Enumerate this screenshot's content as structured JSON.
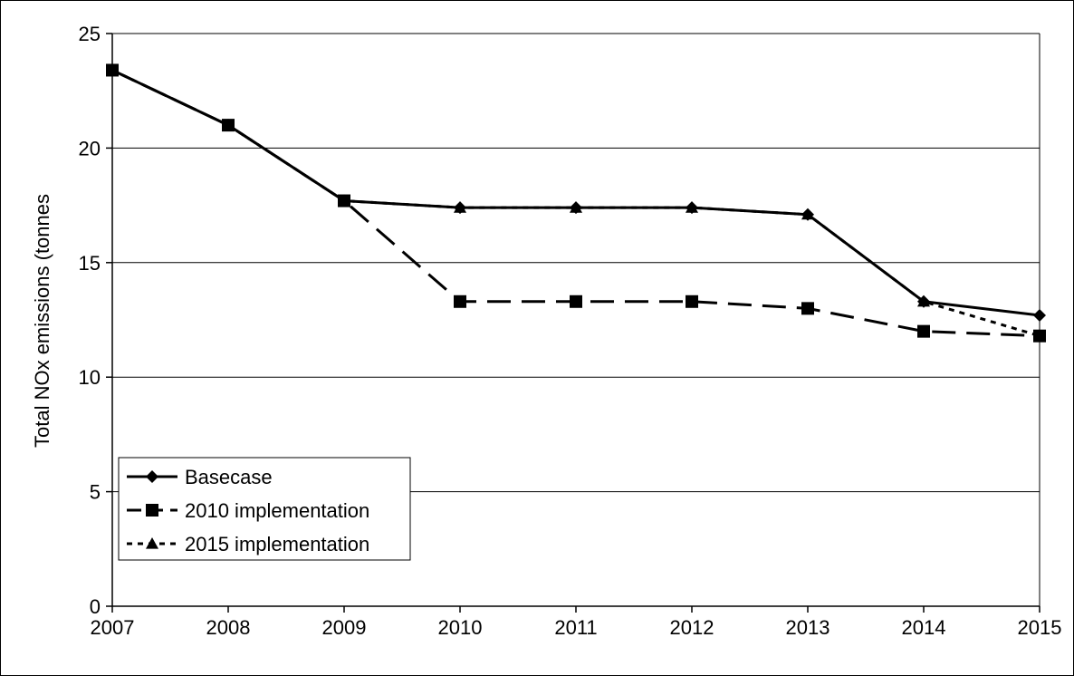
{
  "chart_data": {
    "type": "line",
    "title": "",
    "xlabel": "",
    "ylabel": "Total NOx emissions (tonnes",
    "x": [
      "2007",
      "2008",
      "2009",
      "2010",
      "2011",
      "2012",
      "2013",
      "2014",
      "2015"
    ],
    "ylim": [
      0,
      25
    ],
    "yticks": [
      0,
      5,
      10,
      15,
      20,
      25
    ],
    "grid": "horizontal",
    "legend_position": "bottom-left",
    "series": [
      {
        "name": "Basecase",
        "values": [
          23.4,
          21.0,
          17.7,
          17.4,
          17.4,
          17.4,
          17.1,
          13.3,
          12.7
        ],
        "marker": "diamond",
        "line": "solid"
      },
      {
        "name": "2010 implementation",
        "values": [
          23.4,
          21.0,
          17.7,
          13.3,
          13.3,
          13.3,
          13.0,
          12.0,
          11.8
        ],
        "marker": "square",
        "line": "dashed"
      },
      {
        "name": "2015 implementation",
        "values": [
          23.4,
          21.0,
          17.7,
          17.4,
          17.4,
          17.4,
          17.1,
          13.3,
          11.8
        ],
        "marker": "triangle",
        "line": "dotted"
      }
    ]
  }
}
